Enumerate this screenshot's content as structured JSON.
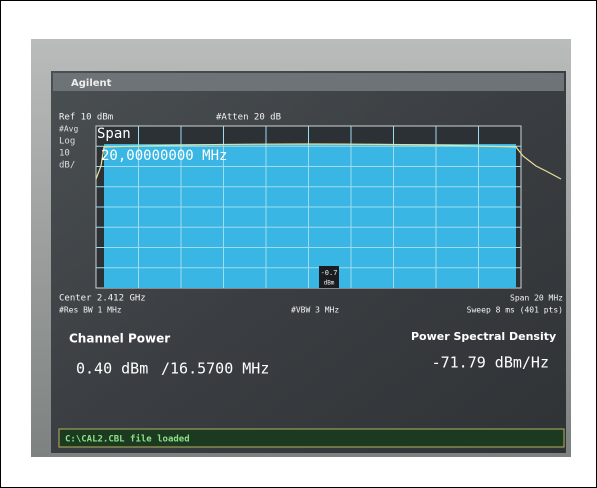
{
  "header": {
    "brand": "Agilent"
  },
  "top": {
    "ref": "Ref 10 dBm",
    "atten": "#Atten 20 dB"
  },
  "left": {
    "avg": "#Avg",
    "log": "Log",
    "scale": "10",
    "unit": "dB/"
  },
  "display": {
    "span_label": "Span",
    "span_value": "20,00000000 MHz",
    "marker_value": "-0.7",
    "marker_unit": "dBm"
  },
  "bottom": {
    "center": "Center 2.412 GHz",
    "res_bw": "#Res BW 1 MHz",
    "vbw": "#VBW 3 MHz",
    "span": "Span 20 MHz",
    "sweep": "Sweep 8 ms (401 pts)"
  },
  "results": {
    "channel_power_title": "Channel Power",
    "channel_power": "0.40 dBm",
    "bandwidth": "/16.5700 MHz",
    "psd_title": "Power Spectral Density",
    "psd": "-71.79 dBm/Hz"
  },
  "status": "C:\\CAL2.CBL file loaded"
}
